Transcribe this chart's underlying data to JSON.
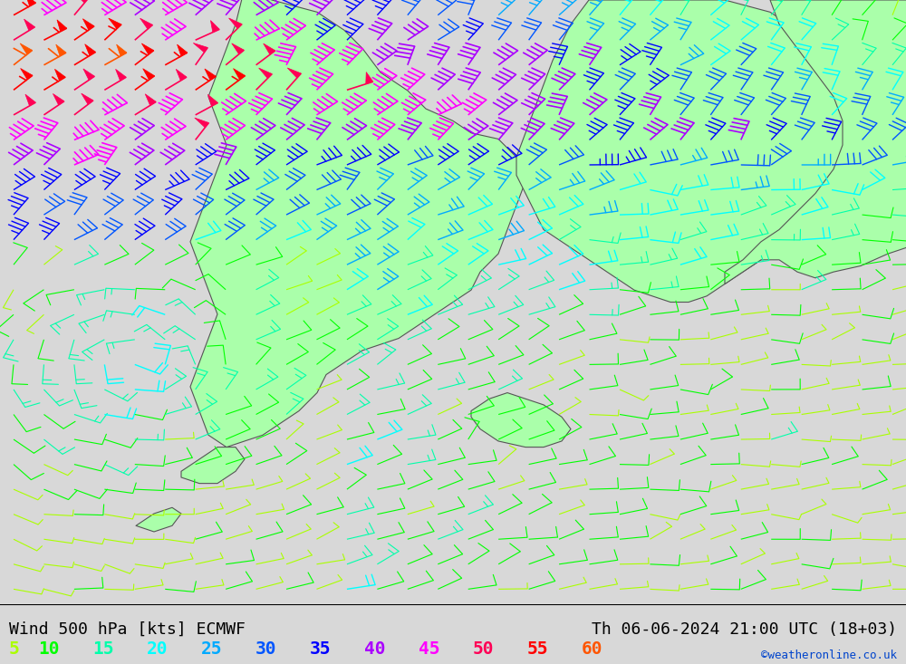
{
  "title_left": "Wind 500 hPa [kts] ECMWF",
  "title_right": "Th 06-06-2024 21:00 UTC (18+03)",
  "watermark": "©weatheronline.co.uk",
  "legend_values": [
    5,
    10,
    15,
    20,
    25,
    30,
    35,
    40,
    45,
    50,
    55,
    60
  ],
  "legend_colors": [
    "#aaff00",
    "#00ff00",
    "#00ffaa",
    "#00ffff",
    "#00aaff",
    "#0055ff",
    "#0000ff",
    "#aa00ff",
    "#ff00ff",
    "#ff0055",
    "#ff0000",
    "#ff5500"
  ],
  "background_color": "#d8d8d8",
  "map_green": "#aaffaa",
  "land_edge": "#555555",
  "speed_colors": {
    "5": "#aaff00",
    "10": "#00ff00",
    "15": "#00ffaa",
    "20": "#00ffff",
    "25": "#00aaff",
    "30": "#0055ff",
    "35": "#0000ff",
    "40": "#aa00ff",
    "45": "#ff00ff",
    "50": "#ff0055",
    "55": "#ff0000",
    "60": "#ff5500"
  },
  "figsize": [
    10.0,
    7.33
  ],
  "dpi": 100
}
